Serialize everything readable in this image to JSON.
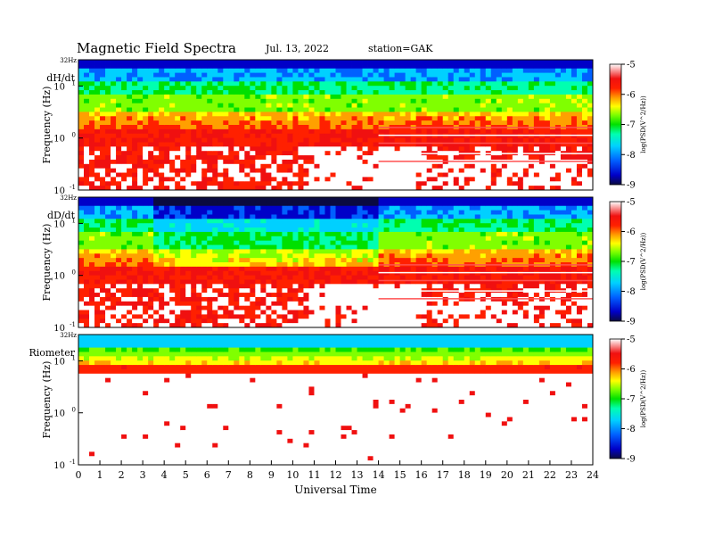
{
  "header": {
    "title": "Magnetic  Field  Spectra",
    "date": "Jul.  13, 2022",
    "station": "station=GAK"
  },
  "chart_data": [
    {
      "type": "heatmap",
      "panel_label": "dH/dt",
      "ylabel": "Frequency  (Hz)",
      "y_top_label": "32Hz",
      "y_ticks": [
        {
          "base": "10",
          "exp": "1",
          "value": 10
        },
        {
          "base": "10",
          "exp": "0",
          "value": 1
        },
        {
          "base": "10",
          "exp": "-1",
          "value": 0.1
        }
      ],
      "y_scale": "log",
      "ylim": [
        0.1,
        32
      ],
      "xlim": [
        0,
        24
      ],
      "colorbar": {
        "label": "log(PSD(V^2/Hz))",
        "ticks": [
          "-5",
          "-6",
          "-7",
          "-8",
          "-9"
        ],
        "range": [
          -9,
          -5
        ]
      }
    },
    {
      "type": "heatmap",
      "panel_label": "dD/dt",
      "ylabel": "Frequency  (Hz)",
      "y_top_label": "32Hz",
      "y_ticks": [
        {
          "base": "10",
          "exp": "1",
          "value": 10
        },
        {
          "base": "10",
          "exp": "0",
          "value": 1
        },
        {
          "base": "10",
          "exp": "-1",
          "value": 0.1
        }
      ],
      "y_scale": "log",
      "ylim": [
        0.1,
        32
      ],
      "xlim": [
        0,
        24
      ],
      "colorbar": {
        "label": "log(PSD(V^2/Hz))",
        "ticks": [
          "-5",
          "-6",
          "-7",
          "-8",
          "-9"
        ],
        "range": [
          -9,
          -5
        ]
      }
    },
    {
      "type": "heatmap",
      "panel_label": "Riometer",
      "ylabel": "Frequency  (Hz)",
      "y_top_label": "32Hz",
      "y_ticks": [
        {
          "base": "10",
          "exp": "1",
          "value": 10
        },
        {
          "base": "10",
          "exp": "0",
          "value": 1
        },
        {
          "base": "10",
          "exp": "-1",
          "value": 0.1
        }
      ],
      "y_scale": "log",
      "ylim": [
        0.1,
        32
      ],
      "xlim": [
        0,
        24
      ],
      "colorbar": {
        "label": "log(PSD(V^2/Hz))",
        "ticks": [
          "-5",
          "-6",
          "-7",
          "-8",
          "-9"
        ],
        "range": [
          -9,
          -5
        ]
      }
    }
  ],
  "x_axis": {
    "xlabel": "Universal Time",
    "ticks": [
      "0",
      "1",
      "2",
      "3",
      "4",
      "5",
      "6",
      "7",
      "8",
      "9",
      "10",
      "11",
      "12",
      "13",
      "14",
      "15",
      "16",
      "17",
      "18",
      "19",
      "20",
      "21",
      "22",
      "23",
      "24"
    ]
  },
  "colormap": [
    "#0a0a40",
    "#0000c8",
    "#0060ff",
    "#00d0ff",
    "#00ffb0",
    "#00e000",
    "#80ff00",
    "#ffff00",
    "#ffa000",
    "#ff2000",
    "#f01010",
    "#ffffff"
  ]
}
